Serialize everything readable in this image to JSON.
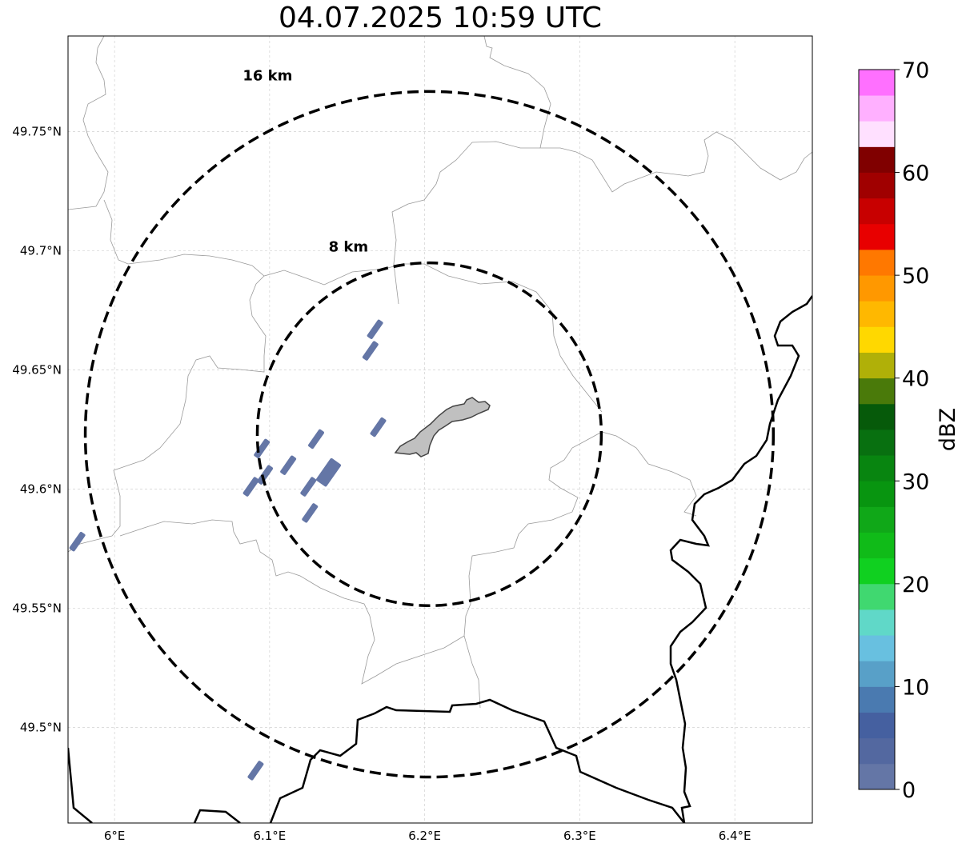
{
  "title": "04.07.2025 10:59 UTC",
  "map": {
    "lon_range": [
      5.97,
      6.45
    ],
    "lat_range": [
      49.46,
      49.79
    ],
    "grid": true,
    "lon_ticks": [
      {
        "value": 6.0,
        "label": "6°E"
      },
      {
        "value": 6.1,
        "label": "6.1°E"
      },
      {
        "value": 6.2,
        "label": "6.2°E"
      },
      {
        "value": 6.3,
        "label": "6.3°E"
      },
      {
        "value": 6.4,
        "label": "6.4°E"
      }
    ],
    "lat_ticks": [
      {
        "value": 49.5,
        "label": "49.5°N"
      },
      {
        "value": 49.55,
        "label": "49.55°N"
      },
      {
        "value": 49.6,
        "label": "49.6°N"
      },
      {
        "value": 49.65,
        "label": "49.65°N"
      },
      {
        "value": 49.7,
        "label": "49.7°N"
      },
      {
        "value": 49.75,
        "label": "49.75°N"
      }
    ],
    "center": {
      "lon": 6.203,
      "lat": 49.623
    },
    "rings": [
      {
        "label": "8 km",
        "radius_km": 8
      },
      {
        "label": "16 km",
        "radius_km": 16
      }
    ],
    "radar_cells": [
      {
        "lon": 6.168,
        "lat": 49.667,
        "dbz": 0
      },
      {
        "lon": 6.165,
        "lat": 49.658,
        "dbz": 0
      },
      {
        "lon": 6.17,
        "lat": 49.626,
        "dbz": 0
      },
      {
        "lon": 6.13,
        "lat": 49.621,
        "dbz": 0
      },
      {
        "lon": 6.095,
        "lat": 49.617,
        "dbz": 0
      },
      {
        "lon": 6.112,
        "lat": 49.61,
        "dbz": 0
      },
      {
        "lon": 6.097,
        "lat": 49.606,
        "dbz": 0
      },
      {
        "lon": 6.088,
        "lat": 49.601,
        "dbz": 0
      },
      {
        "lon": 6.138,
        "lat": 49.607,
        "dbz": 2
      },
      {
        "lon": 6.125,
        "lat": 49.601,
        "dbz": 0
      },
      {
        "lon": 6.126,
        "lat": 49.59,
        "dbz": 0
      },
      {
        "lon": 5.976,
        "lat": 49.578,
        "dbz": 0
      },
      {
        "lon": 6.091,
        "lat": 49.482,
        "dbz": 0
      }
    ]
  },
  "colorbar": {
    "label": "dBZ",
    "min": 0,
    "max": 70,
    "step": 2.5,
    "tick_labels": [
      "0",
      "10",
      "20",
      "30",
      "40",
      "50",
      "60",
      "70"
    ],
    "colors": [
      "#6476a6",
      "#5368a0",
      "#4560a0",
      "#4a7ab0",
      "#58a0c8",
      "#68c0e0",
      "#60d8c8",
      "#40d870",
      "#10d020",
      "#10bb18",
      "#10a818",
      "#089510",
      "#088510",
      "#087010",
      "#065a0a",
      "#4a7a0a",
      "#b0b008",
      "#ffd800",
      "#ffb800",
      "#ff9800",
      "#ff7800",
      "#e80000",
      "#c80000",
      "#a00000",
      "#800000",
      "#ffe0ff",
      "#ffb0ff",
      "#ff70ff",
      "#f030f0"
    ]
  }
}
